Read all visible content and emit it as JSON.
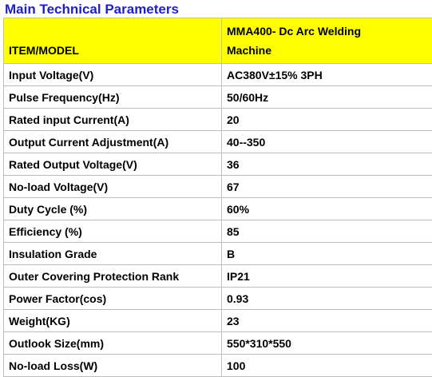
{
  "title": "Main Technical Parameters",
  "header": {
    "item": "ITEM/MODEL",
    "model_line1": "MMA400- Dc Arc Welding",
    "model_line2": "Machine"
  },
  "rows": [
    {
      "param": "Input Voltage(V)",
      "value": "AC380V±15% 3PH"
    },
    {
      "param": "Pulse Frequency(Hz)",
      "value": "50/60Hz"
    },
    {
      "param": "Rated input Current(A)",
      "value": "20"
    },
    {
      "param": "Output Current Adjustment(A)",
      "value": "40--350"
    },
    {
      "param": "Rated Output Voltage(V)",
      "value": "36"
    },
    {
      "param": "No-load Voltage(V)",
      "value": "67"
    },
    {
      "param": "Duty Cycle (%)",
      "value": "60%"
    },
    {
      "param": "Efficiency (%)",
      "value": "85"
    },
    {
      "param": "Insulation Grade",
      "value": "B"
    },
    {
      "param": "Outer Covering Protection Rank",
      "value": "IP21"
    },
    {
      "param": "Power Factor(cos)",
      "value": "0.93"
    },
    {
      "param": "Weight(KG)",
      "value": "23"
    },
    {
      "param": "Outlook Size(mm)",
      "value": "550*310*550"
    },
    {
      "param": "No-load Loss(W)",
      "value": "100"
    }
  ]
}
